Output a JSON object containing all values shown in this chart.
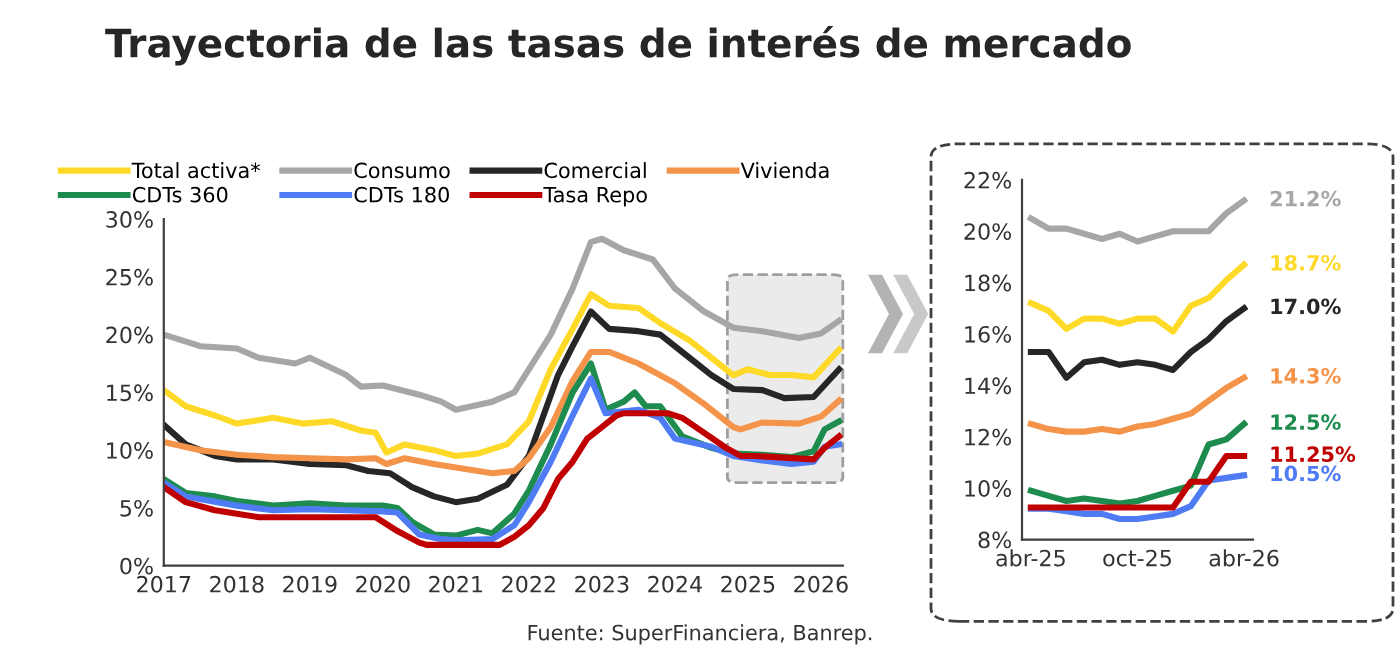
{
  "chart_data": [
    {
      "type": "line",
      "title": "Trayectoria de las tasas de interés de mercado",
      "annotations": [
        "Fuente: SuperFinanciera, Banrep."
      ],
      "legend": "top",
      "grid": false,
      "marker": "none",
      "line_style": "solid",
      "xlim": [
        2017,
        2026.3
      ],
      "xticks": [
        2017,
        2018,
        2019,
        2020,
        2021,
        2022,
        2023,
        2024,
        2025,
        2026
      ],
      "ylim": [
        0,
        30
      ],
      "yticks": [
        {
          "value": 0,
          "label": "0%"
        },
        {
          "value": 5,
          "label": "5%"
        },
        {
          "value": 10,
          "label": "10%"
        },
        {
          "value": 15,
          "label": "15%"
        },
        {
          "value": 20,
          "label": "20%"
        },
        {
          "value": 25,
          "label": "25%"
        },
        {
          "value": 30,
          "label": "30%"
        }
      ],
      "series": [
        {
          "name": "Total activa*",
          "color": "#ffd928",
          "x": [
            2017,
            2017.3,
            2017.7,
            2018,
            2018.5,
            2018.9,
            2019.3,
            2019.7,
            2019.9,
            2020.05,
            2020.3,
            2020.7,
            2021,
            2021.3,
            2021.7,
            2022,
            2022.3,
            2022.6,
            2022.85,
            2023.1,
            2023.5,
            2023.8,
            2024.2,
            2024.5,
            2024.8,
            2025,
            2025.3,
            2025.6,
            2025.9,
            2026.25
          ],
          "values": [
            15.2,
            13.8,
            13,
            12.3,
            12.8,
            12.3,
            12.5,
            11.7,
            11.5,
            9.8,
            10.5,
            10,
            9.5,
            9.7,
            10.5,
            12.5,
            17,
            20.5,
            23.5,
            22.5,
            22.3,
            21,
            19.5,
            18,
            16.5,
            17,
            16.5,
            16.5,
            16.3,
            18.7
          ]
        },
        {
          "name": "Consumo",
          "color": "#a6a6a6",
          "x": [
            2017,
            2017.5,
            2018,
            2018.3,
            2018.8,
            2019,
            2019.5,
            2019.7,
            2020,
            2020.5,
            2020.8,
            2021,
            2021.5,
            2021.8,
            2022,
            2022.3,
            2022.6,
            2022.85,
            2023,
            2023.3,
            2023.7,
            2024,
            2024.4,
            2024.8,
            2025.2,
            2025.7,
            2026,
            2026.25
          ],
          "values": [
            20,
            19,
            18.8,
            18,
            17.5,
            18,
            16.5,
            15.5,
            15.6,
            14.8,
            14.2,
            13.5,
            14.2,
            15,
            17,
            20,
            24,
            28,
            28.3,
            27.3,
            26.5,
            24,
            22,
            20.6,
            20.3,
            19.7,
            20.1,
            21.2
          ]
        },
        {
          "name": "Comercial",
          "color": "#262626",
          "x": [
            2017,
            2017.3,
            2017.7,
            2018,
            2018.5,
            2019,
            2019.5,
            2019.8,
            2020.1,
            2020.4,
            2020.7,
            2021,
            2021.3,
            2021.7,
            2022,
            2022.2,
            2022.4,
            2022.6,
            2022.85,
            2023.1,
            2023.5,
            2023.8,
            2024.2,
            2024.5,
            2024.8,
            2025.2,
            2025.5,
            2025.9,
            2026.25
          ],
          "values": [
            12.2,
            10.5,
            9.5,
            9.2,
            9.2,
            8.8,
            8.7,
            8.2,
            8,
            6.8,
            6,
            5.5,
            5.8,
            7,
            9.5,
            13,
            16.5,
            19,
            22,
            20.5,
            20.3,
            20,
            18,
            16.5,
            15.3,
            15.2,
            14.5,
            14.6,
            17
          ]
        },
        {
          "name": "Vivienda",
          "color": "#f4934a",
          "x": [
            2017,
            2017.5,
            2018,
            2018.5,
            2019,
            2019.5,
            2019.9,
            2020.05,
            2020.3,
            2020.7,
            2021,
            2021.5,
            2021.8,
            2022,
            2022.3,
            2022.6,
            2022.85,
            2023.1,
            2023.5,
            2024,
            2024.4,
            2024.8,
            2024.9,
            2025.2,
            2025.7,
            2026,
            2026.25
          ],
          "values": [
            10.7,
            10,
            9.6,
            9.4,
            9.3,
            9.2,
            9.3,
            8.8,
            9.3,
            8.8,
            8.5,
            8,
            8.2,
            9.3,
            12,
            16,
            18.5,
            18.5,
            17.5,
            15.8,
            14,
            12,
            11.8,
            12.4,
            12.3,
            12.9,
            14.3
          ]
        },
        {
          "name": "CDTs 360",
          "color": "#1e8c4e",
          "x": [
            2017,
            2017.3,
            2017.7,
            2018,
            2018.5,
            2019,
            2019.5,
            2020,
            2020.2,
            2020.4,
            2020.7,
            2021,
            2021.3,
            2021.5,
            2021.8,
            2022,
            2022.3,
            2022.6,
            2022.85,
            2023.05,
            2023.3,
            2023.45,
            2023.6,
            2023.8,
            2024.1,
            2024.5,
            2024.8,
            2025.2,
            2025.6,
            2025.9,
            2026.05,
            2026.25
          ],
          "values": [
            7.5,
            6.3,
            6,
            5.6,
            5.2,
            5.4,
            5.2,
            5.2,
            5,
            3.8,
            2.7,
            2.6,
            3.1,
            2.8,
            4.5,
            6.5,
            10.5,
            15,
            17.5,
            13.5,
            14.2,
            15,
            13.8,
            13.8,
            11.2,
            10.2,
            9.7,
            9.6,
            9.4,
            9.9,
            11.8,
            12.5
          ]
        },
        {
          "name": "CDTs 180",
          "color": "#4f7cf5",
          "x": [
            2017,
            2017.3,
            2018,
            2018.5,
            2019,
            2019.5,
            2020,
            2020.2,
            2020.5,
            2020.8,
            2021,
            2021.5,
            2021.8,
            2022,
            2022.3,
            2022.6,
            2022.85,
            2023.05,
            2023.5,
            2023.8,
            2024,
            2024.5,
            2024.8,
            2025.2,
            2025.6,
            2025.9,
            2026.05,
            2026.25
          ],
          "values": [
            7.2,
            6,
            5.2,
            4.8,
            4.9,
            4.8,
            4.7,
            4.6,
            2.7,
            2.3,
            2.2,
            2.3,
            3.5,
            5.5,
            9,
            13,
            16.2,
            13.2,
            13.5,
            12.8,
            11,
            10.3,
            9.5,
            9.1,
            8.8,
            9,
            10.3,
            10.5
          ]
        },
        {
          "name": "Tasa Repo",
          "color": "#c00000",
          "x": [
            2017,
            2017.3,
            2017.7,
            2018,
            2018.3,
            2019.9,
            2020.2,
            2020.5,
            2020.6,
            2021.6,
            2021.8,
            2022,
            2022.2,
            2022.4,
            2022.6,
            2022.8,
            2023,
            2023.2,
            2023.3,
            2023.9,
            2024.1,
            2024.4,
            2024.7,
            2024.9,
            2025.1,
            2025.9,
            2026.05,
            2026.25
          ],
          "values": [
            6.8,
            5.5,
            4.8,
            4.5,
            4.2,
            4.2,
            3,
            2,
            1.8,
            1.8,
            2.5,
            3.5,
            5,
            7.5,
            9,
            11,
            12,
            13,
            13.2,
            13.2,
            12.8,
            11.5,
            10.2,
            9.5,
            9.5,
            9.2,
            10.2,
            11.2
          ]
        }
      ]
    },
    {
      "type": "line",
      "grid": false,
      "marker": "none",
      "line_style": "solid",
      "categories": [
        "abr-25",
        null,
        null,
        null,
        null,
        null,
        "oct-25",
        null,
        null,
        null,
        null,
        null,
        "abr-26"
      ],
      "ylim": [
        8,
        22
      ],
      "yticks": [
        {
          "value": 8,
          "label": "8%"
        },
        {
          "value": 10,
          "label": "10%"
        },
        {
          "value": 12,
          "label": "12%"
        },
        {
          "value": 14,
          "label": "14%"
        },
        {
          "value": 16,
          "label": "16%"
        },
        {
          "value": 18,
          "label": "18%"
        },
        {
          "value": 20,
          "label": "20%"
        },
        {
          "value": 22,
          "label": "22%"
        }
      ],
      "series": [
        {
          "color": "#a6a6a6",
          "values": [
            20.5,
            20.1,
            20.1,
            19.9,
            19.7,
            19.9,
            19.6,
            19.8,
            20,
            20,
            20,
            20.7,
            21.2
          ],
          "value_labels": [
            null,
            null,
            null,
            null,
            null,
            null,
            null,
            null,
            null,
            null,
            null,
            null,
            "21.2%"
          ]
        },
        {
          "color": "#ffd928",
          "values": [
            17.2,
            16.9,
            16.2,
            16.6,
            16.6,
            16.4,
            16.6,
            16.6,
            16.1,
            17.1,
            17.4,
            18.1,
            18.7
          ],
          "value_labels": [
            null,
            null,
            null,
            null,
            null,
            null,
            null,
            null,
            null,
            null,
            null,
            null,
            "18.7%"
          ]
        },
        {
          "color": "#262626",
          "values": [
            15.3,
            15.3,
            14.3,
            14.9,
            15,
            14.8,
            14.9,
            14.8,
            14.6,
            15.3,
            15.8,
            16.5,
            17
          ],
          "value_labels": [
            null,
            null,
            null,
            null,
            null,
            null,
            null,
            null,
            null,
            null,
            null,
            null,
            "17.0%"
          ]
        },
        {
          "color": "#f4934a",
          "values": [
            12.5,
            12.3,
            12.2,
            12.2,
            12.3,
            12.2,
            12.4,
            12.5,
            12.7,
            12.9,
            13.4,
            13.9,
            14.3
          ],
          "value_labels": [
            null,
            null,
            null,
            null,
            null,
            null,
            null,
            null,
            null,
            null,
            null,
            null,
            "14.3%"
          ]
        },
        {
          "color": "#1e8c4e",
          "values": [
            9.9,
            9.7,
            9.5,
            9.6,
            9.5,
            9.4,
            9.5,
            9.7,
            9.9,
            10.1,
            11.7,
            11.9,
            12.5
          ],
          "value_labels": [
            null,
            null,
            null,
            null,
            null,
            null,
            null,
            null,
            null,
            null,
            null,
            null,
            "12.5%"
          ]
        },
        {
          "color": "#4f7cf5",
          "values": [
            9.2,
            9.2,
            9.1,
            9,
            9,
            8.8,
            8.8,
            8.9,
            9,
            9.3,
            10.3,
            10.4,
            10.5
          ],
          "value_labels": [
            null,
            null,
            null,
            null,
            null,
            null,
            null,
            null,
            null,
            null,
            null,
            null,
            "10.5%"
          ]
        },
        {
          "color": "#c00000",
          "values": [
            9.25,
            9.25,
            9.25,
            9.25,
            9.25,
            9.25,
            9.25,
            9.25,
            9.25,
            10.25,
            10.25,
            11.25,
            11.25
          ],
          "value_labels": [
            null,
            null,
            null,
            null,
            null,
            null,
            null,
            null,
            null,
            null,
            null,
            null,
            "11.25%"
          ]
        }
      ]
    }
  ]
}
